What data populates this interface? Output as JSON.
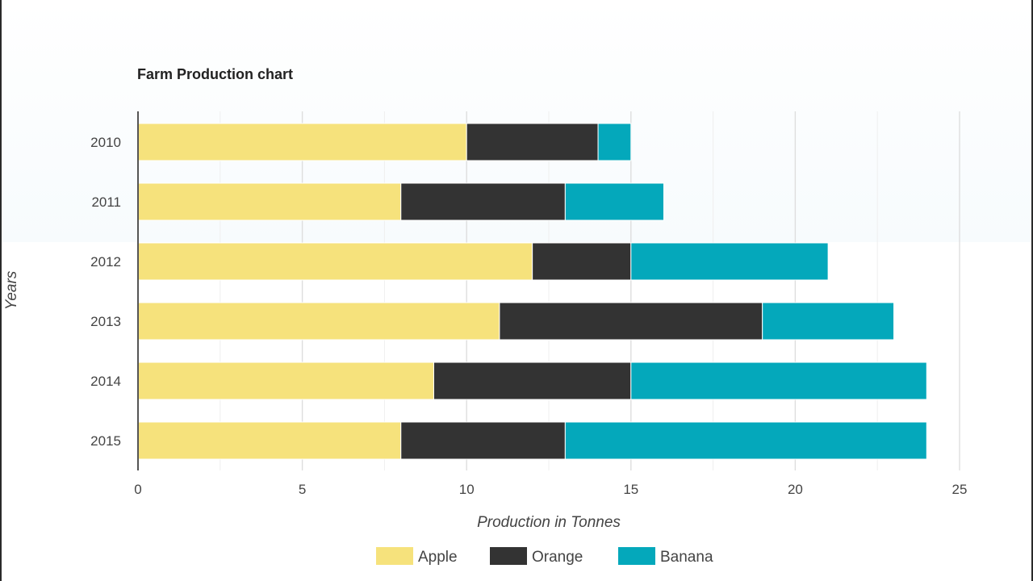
{
  "colors": {
    "apple": "#f6e27c",
    "orange": "#333333",
    "banana": "#04a8bb",
    "grid": "#e4e4e4",
    "axis": "#555555"
  },
  "chart_data": {
    "type": "bar",
    "orientation": "horizontal",
    "stacked": true,
    "title": "Farm Production chart",
    "xlabel": "Production in Tonnes",
    "ylabel": "Years",
    "categories": [
      "2010",
      "2011",
      "2012",
      "2013",
      "2014",
      "2015"
    ],
    "xlim": [
      0,
      25
    ],
    "xticks": [
      0,
      5,
      10,
      15,
      20,
      25
    ],
    "grid": true,
    "legend": "bottom",
    "series": [
      {
        "name": "Apple",
        "color": "#f6e27c",
        "values": [
          10,
          8,
          12,
          11,
          9,
          8
        ]
      },
      {
        "name": "Orange",
        "color": "#333333",
        "values": [
          4,
          5,
          3,
          8,
          6,
          5
        ]
      },
      {
        "name": "Banana",
        "color": "#04a8bb",
        "values": [
          1,
          3,
          6,
          4,
          9,
          11
        ]
      }
    ]
  }
}
